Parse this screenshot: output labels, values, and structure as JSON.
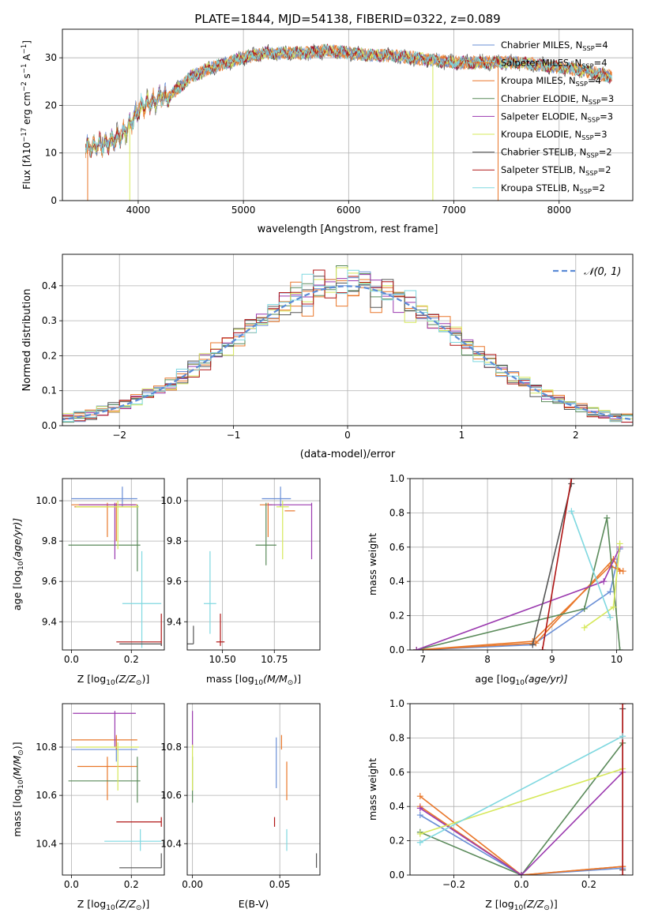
{
  "colors": {
    "Chabrier MILES": "#6a8fd6",
    "Salpeter MILES": "#e9772a",
    "Kroupa MILES": "#e9772a",
    "Chabrier ELODIE": "#5a8a5a",
    "Salpeter ELODIE": "#9b3aaf",
    "Kroupa ELODIE": "#d6e85a",
    "Chabrier STELIB": "#555555",
    "Salpeter STELIB": "#b01515",
    "Kroupa STELIB": "#7fd8e0",
    "gauss": "#5b8bd6",
    "grid": "#b0b0b0"
  },
  "chart_data": [
    {
      "id": "spectrum",
      "type": "line",
      "title": "PLATE=1844, MJD=54138, FIBERID=0322, z=0.089",
      "xlabel": "wavelength [Angstrom, rest frame]",
      "ylabel_parts": [
        "Flux [f",
        "λ",
        "10",
        "−17",
        " erg cm",
        "−2",
        " s",
        "−1",
        " A",
        "−1",
        "]"
      ],
      "xlim": [
        3280,
        8700
      ],
      "ylim": [
        0,
        36
      ],
      "xticks": [
        4000,
        5000,
        6000,
        7000,
        8000
      ],
      "yticks": [
        0,
        10,
        20,
        30
      ],
      "legend_position": "top-right",
      "legend": [
        {
          "main": "Chabrier MILES, N",
          "sub": "SSP",
          "tail": "=4"
        },
        {
          "main": "Salpeter MILES, N",
          "sub": "SSP",
          "tail": "=4"
        },
        {
          "main": "Kroupa MILES, N",
          "sub": "SSP",
          "tail": "=4"
        },
        {
          "main": "Chabrier ELODIE, N",
          "sub": "SSP",
          "tail": "=3"
        },
        {
          "main": "Salpeter ELODIE, N",
          "sub": "SSP",
          "tail": "=3"
        },
        {
          "main": "Kroupa ELODIE, N",
          "sub": "SSP",
          "tail": "=3"
        },
        {
          "main": "Chabrier STELIB, N",
          "sub": "SSP",
          "tail": "=2"
        },
        {
          "main": "Salpeter STELIB, N",
          "sub": "SSP",
          "tail": "=2"
        },
        {
          "main": "Kroupa STELIB, N",
          "sub": "SSP",
          "tail": "=2"
        }
      ],
      "continuum": {
        "x": [
          3500,
          3600,
          3700,
          3800,
          3900,
          4000,
          4100,
          4200,
          4300,
          4400,
          4500,
          4700,
          5000,
          5200,
          5400,
          5600,
          5800,
          6000,
          6200,
          6400,
          6600,
          6800,
          7000,
          7200,
          7400,
          7600,
          7800,
          8000,
          8200,
          8500
        ],
        "y": [
          11,
          11.5,
          12,
          13,
          15,
          19,
          20.5,
          21.5,
          22,
          24,
          26,
          28,
          30,
          31,
          31,
          31,
          31.5,
          31,
          30.5,
          30.5,
          30,
          29.5,
          29,
          29,
          29,
          29,
          28.5,
          28,
          27.5,
          26
        ]
      },
      "dips": [
        {
          "x": 3920,
          "y": 0,
          "series": "Kroupa ELODIE"
        },
        {
          "x": 6800,
          "y": 0,
          "series": "Kroupa ELODIE"
        },
        {
          "x": 7420,
          "y": 0,
          "series": "Kroupa MILES"
        },
        {
          "x": 3520,
          "y": 0,
          "series": "Kroupa MILES"
        }
      ]
    },
    {
      "id": "residuals",
      "type": "histogram",
      "xlabel": "(data-model)/error",
      "ylabel": "Normed distribution",
      "xlim": [
        -2.5,
        2.5
      ],
      "ylim": [
        0,
        0.49
      ],
      "xticks": [
        -2,
        -1,
        0,
        1,
        2
      ],
      "yticks": [
        0.0,
        0.1,
        0.2,
        0.3,
        0.4
      ],
      "legend_position": "top-right",
      "legend": [
        {
          "label_prefix": "𝒩",
          "label_rest": "(0, 1)"
        }
      ],
      "bin_width": 0.1,
      "reference_curve": {
        "mu": 0,
        "sigma": 1,
        "style": "dashed"
      }
    },
    {
      "id": "age-vs-Z",
      "type": "errorbar",
      "xlabel_parts": [
        "Z [log",
        "10",
        "(Z/Z",
        "⊙",
        ")]"
      ],
      "ylabel_parts": [
        "age  [log",
        "10",
        "(age/yr)]"
      ],
      "xlim": [
        -0.03,
        0.31
      ],
      "ylim": [
        9.26,
        10.11
      ],
      "xticks": [
        0.0,
        0.2
      ],
      "yticks": [
        9.4,
        9.6,
        9.8,
        10.0
      ],
      "points": [
        {
          "series": "Chabrier MILES",
          "x": 0.17,
          "y": 10.01,
          "xerr": [
            0.17,
            0.05
          ],
          "yerr": [
            0.04,
            0.06
          ]
        },
        {
          "series": "Salpeter MILES",
          "x": 0.12,
          "y": 9.98,
          "xerr": [
            0.12,
            0.1
          ],
          "yerr": [
            0.16,
            0.01
          ]
        },
        {
          "series": "Kroupa MILES",
          "x": 0.15,
          "y": 9.97,
          "xerr": [
            0.14,
            0.07
          ],
          "yerr": [
            0.17,
            0.02
          ]
        },
        {
          "series": "Chabrier ELODIE",
          "x": 0.22,
          "y": 9.78,
          "xerr": [
            0.23,
            0.01
          ],
          "yerr": [
            0.13,
            0.2
          ]
        },
        {
          "series": "Salpeter ELODIE",
          "x": 0.145,
          "y": 9.98,
          "xerr": [
            0.12,
            0.07
          ],
          "yerr": [
            0.27,
            0.01
          ]
        },
        {
          "series": "Kroupa ELODIE",
          "x": 0.155,
          "y": 9.97,
          "xerr": [
            0.14,
            0.07
          ],
          "yerr": [
            0.21,
            0.03
          ]
        },
        {
          "series": "Kroupa STELIB",
          "x": 0.235,
          "y": 9.49,
          "xerr": [
            0.065,
            0.065
          ],
          "yerr": [
            0.22,
            0.26
          ]
        },
        {
          "series": "Salpeter STELIB",
          "x": 0.3,
          "y": 9.3,
          "xerr": [
            0.15,
            0.0
          ],
          "yerr": [
            0.02,
            0.14
          ]
        },
        {
          "series": "Chabrier STELIB",
          "x": 0.3,
          "y": 9.29,
          "xerr": [
            0.14,
            0.0
          ],
          "yerr": [
            0.01,
            0.0
          ]
        }
      ]
    },
    {
      "id": "age-vs-mass",
      "type": "errorbar",
      "xlabel_parts": [
        "mass [log",
        "10",
        "(M/M",
        "⊙",
        ")]"
      ],
      "xlim": [
        10.33,
        10.97
      ],
      "ylim": [
        9.26,
        10.11
      ],
      "xticks": [
        10.5,
        10.75
      ],
      "yticks": [
        9.4,
        9.6,
        9.8,
        10.0
      ],
      "points": [
        {
          "series": "Chabrier MILES",
          "x": 10.78,
          "y": 10.01,
          "xerr": [
            0.09,
            0.05
          ],
          "yerr": [
            0.04,
            0.06
          ]
        },
        {
          "series": "Salpeter MILES",
          "x": 10.72,
          "y": 9.98,
          "xerr": [
            0.04,
            0.02
          ],
          "yerr": [
            0.16,
            0.01
          ]
        },
        {
          "series": "Kroupa MILES",
          "x": 10.83,
          "y": 9.95,
          "xerr": [
            0.03,
            0.02
          ],
          "yerr": [
            0.0,
            0.0
          ]
        },
        {
          "series": "Chabrier ELODIE",
          "x": 10.71,
          "y": 9.78,
          "xerr": [
            0.05,
            0.05
          ],
          "yerr": [
            0.1,
            0.21
          ]
        },
        {
          "series": "Salpeter ELODIE",
          "x": 10.93,
          "y": 9.98,
          "xerr": [
            0.21,
            0.0
          ],
          "yerr": [
            0.27,
            0.01
          ]
        },
        {
          "series": "Kroupa ELODIE",
          "x": 10.79,
          "y": 9.97,
          "xerr": [
            0.03,
            0.03
          ],
          "yerr": [
            0.26,
            0.03
          ]
        },
        {
          "series": "Kroupa STELIB",
          "x": 10.44,
          "y": 9.49,
          "xerr": [
            0.03,
            0.03
          ],
          "yerr": [
            0.15,
            0.26
          ]
        },
        {
          "series": "Salpeter STELIB",
          "x": 10.49,
          "y": 9.3,
          "xerr": [
            0.02,
            0.02
          ],
          "yerr": [
            0.02,
            0.14
          ]
        },
        {
          "series": "Chabrier STELIB",
          "x": 10.36,
          "y": 9.29,
          "xerr": [
            0.03,
            0.0
          ],
          "yerr": [
            0.0,
            0.09
          ]
        }
      ]
    },
    {
      "id": "massweight-vs-age",
      "type": "line",
      "xlabel_parts": [
        "age  [log",
        "10",
        "(age/yr)]"
      ],
      "ylabel": "mass weight",
      "xlim": [
        6.8,
        10.25
      ],
      "ylim": [
        0,
        1
      ],
      "xticks": [
        7,
        8,
        9,
        10
      ],
      "yticks": [
        0.0,
        0.2,
        0.4,
        0.6,
        0.8,
        1.0
      ],
      "series": [
        {
          "name": "Chabrier MILES",
          "x": [
            6.9,
            8.7,
            9.9,
            10.05
          ],
          "y": [
            0.0,
            0.03,
            0.34,
            0.59
          ]
        },
        {
          "name": "Salpeter MILES",
          "x": [
            6.9,
            8.7,
            9.9,
            10.1
          ],
          "y": [
            0.0,
            0.05,
            0.49,
            0.46
          ]
        },
        {
          "name": "Kroupa MILES",
          "x": [
            6.9,
            8.75,
            9.95,
            10.05
          ],
          "y": [
            0.0,
            0.04,
            0.53,
            0.46
          ]
        },
        {
          "name": "Chabrier ELODIE",
          "x": [
            6.9,
            9.5,
            9.85,
            10.05
          ],
          "y": [
            0.0,
            0.24,
            0.77,
            0.0
          ]
        },
        {
          "name": "Salpeter ELODIE",
          "x": [
            6.9,
            9.8,
            10.05
          ],
          "y": [
            0.0,
            0.4,
            0.6
          ]
        },
        {
          "name": "Kroupa ELODIE",
          "x": [
            9.5,
            9.95,
            10.05
          ],
          "y": [
            0.13,
            0.25,
            0.62
          ]
        },
        {
          "name": "Chabrier STELIB",
          "x": [
            8.7,
            9.3
          ],
          "y": [
            0.03,
            0.97
          ]
        },
        {
          "name": "Salpeter STELIB",
          "x": [
            8.85,
            9.3
          ],
          "y": [
            0.0,
            1.0
          ]
        },
        {
          "name": "Kroupa STELIB",
          "x": [
            9.3,
            9.9
          ],
          "y": [
            0.81,
            0.19
          ]
        }
      ]
    },
    {
      "id": "mass-vs-Z",
      "type": "errorbar",
      "xlabel_parts": [
        "Z [log",
        "10",
        "(Z/Z",
        "⊙",
        ")]"
      ],
      "ylabel_parts": [
        "mass [log",
        "10",
        "(M/M",
        "⊙",
        ")]"
      ],
      "xlim": [
        -0.03,
        0.31
      ],
      "ylim": [
        10.27,
        10.98
      ],
      "xticks": [
        0.0,
        0.2
      ],
      "yticks": [
        10.4,
        10.6,
        10.8
      ],
      "points": [
        {
          "series": "Chabrier MILES",
          "x": 0.15,
          "y": 10.79,
          "xerr": [
            0.15,
            0.07
          ],
          "yerr": [
            0.05,
            0.05
          ]
        },
        {
          "series": "Salpeter MILES",
          "x": 0.12,
          "y": 10.72,
          "xerr": [
            0.1,
            0.1
          ],
          "yerr": [
            0.14,
            0.04
          ]
        },
        {
          "series": "Kroupa MILES",
          "x": 0.15,
          "y": 10.83,
          "xerr": [
            0.15,
            0.07
          ],
          "yerr": [
            0.04,
            0.02
          ]
        },
        {
          "series": "Chabrier ELODIE",
          "x": 0.22,
          "y": 10.66,
          "xerr": [
            0.23,
            0.01
          ],
          "yerr": [
            0.09,
            0.1
          ]
        },
        {
          "series": "Salpeter ELODIE",
          "x": 0.145,
          "y": 10.94,
          "xerr": [
            0.14,
            0.07
          ],
          "yerr": [
            0.14,
            0.01
          ]
        },
        {
          "series": "Kroupa ELODIE",
          "x": 0.155,
          "y": 10.8,
          "xerr": [
            0.14,
            0.07
          ],
          "yerr": [
            0.18,
            0.02
          ]
        },
        {
          "series": "Kroupa STELIB",
          "x": 0.23,
          "y": 10.41,
          "xerr": [
            0.12,
            0.07
          ],
          "yerr": [
            0.04,
            0.05
          ]
        },
        {
          "series": "Salpeter STELIB",
          "x": 0.3,
          "y": 10.49,
          "xerr": [
            0.15,
            0.0
          ],
          "yerr": [
            0.02,
            0.02
          ]
        },
        {
          "series": "Chabrier STELIB",
          "x": 0.3,
          "y": 10.3,
          "xerr": [
            0.14,
            0.0
          ],
          "yerr": [
            0.0,
            0.06
          ]
        }
      ]
    },
    {
      "id": "mass-vs-EBV",
      "type": "errorbar",
      "xlabel": "E(B-V)",
      "xlim": [
        -0.003,
        0.073
      ],
      "ylim": [
        10.27,
        10.98
      ],
      "xticks": [
        0.0,
        0.05
      ],
      "yticks": [
        10.4,
        10.6,
        10.8
      ],
      "points": [
        {
          "series": "Chabrier MILES",
          "x": 0.048,
          "y": 10.79,
          "xerr": [
            0,
            0
          ],
          "yerr": [
            0.16,
            0.05
          ]
        },
        {
          "series": "Salpeter MILES",
          "x": 0.054,
          "y": 10.72,
          "xerr": [
            0,
            0
          ],
          "yerr": [
            0.14,
            0.02
          ]
        },
        {
          "series": "Kroupa MILES",
          "x": 0.051,
          "y": 10.83,
          "xerr": [
            0,
            0
          ],
          "yerr": [
            0.04,
            0.02
          ]
        },
        {
          "series": "Chabrier ELODIE",
          "x": 0.0,
          "y": 10.66,
          "xerr": [
            0,
            0
          ],
          "yerr": [
            0.09,
            0.1
          ]
        },
        {
          "series": "Salpeter ELODIE",
          "x": 0.0,
          "y": 10.94,
          "xerr": [
            0,
            0
          ],
          "yerr": [
            0.14,
            0.01
          ]
        },
        {
          "series": "Kroupa ELODIE",
          "x": 0.0,
          "y": 10.8,
          "xerr": [
            0,
            0
          ],
          "yerr": [
            0.18,
            0.01
          ]
        },
        {
          "series": "Kroupa STELIB",
          "x": 0.054,
          "y": 10.41,
          "xerr": [
            0,
            0
          ],
          "yerr": [
            0.04,
            0.05
          ]
        },
        {
          "series": "Salpeter STELIB",
          "x": 0.047,
          "y": 10.49,
          "xerr": [
            0,
            0
          ],
          "yerr": [
            0.02,
            0.02
          ]
        },
        {
          "series": "Chabrier STELIB",
          "x": 0.071,
          "y": 10.3,
          "xerr": [
            0,
            0
          ],
          "yerr": [
            0.0,
            0.06
          ]
        }
      ]
    },
    {
      "id": "massweight-vs-Z",
      "type": "line",
      "xlabel_parts": [
        "Z [log",
        "10",
        "(Z/Z",
        "⊙",
        ")]"
      ],
      "ylabel": "mass weight",
      "xlim": [
        -0.33,
        0.33
      ],
      "ylim": [
        0,
        1
      ],
      "xticks": [
        -0.2,
        0.0,
        0.2
      ],
      "yticks": [
        0.0,
        0.2,
        0.4,
        0.6,
        0.8,
        1.0
      ],
      "series": [
        {
          "name": "Chabrier MILES",
          "x": [
            -0.3,
            0.0,
            0.3
          ],
          "y": [
            0.35,
            0.0,
            0.04
          ]
        },
        {
          "name": "Salpeter MILES",
          "x": [
            -0.3,
            0.0,
            0.3
          ],
          "y": [
            0.46,
            0.0,
            0.05
          ]
        },
        {
          "name": "Kroupa MILES",
          "x": [
            -0.3,
            0.0,
            0.3
          ],
          "y": [
            0.4,
            0.0,
            0.05
          ]
        },
        {
          "name": "Chabrier ELODIE",
          "x": [
            -0.3,
            0.0,
            0.3
          ],
          "y": [
            0.25,
            0.0,
            0.77
          ]
        },
        {
          "name": "Salpeter ELODIE",
          "x": [
            -0.3,
            0.0,
            0.3
          ],
          "y": [
            0.39,
            0.0,
            0.6
          ]
        },
        {
          "name": "Kroupa ELODIE",
          "x": [
            -0.3,
            0.3
          ],
          "y": [
            0.24,
            0.62
          ]
        },
        {
          "name": "Chabrier STELIB",
          "x": [
            0.3,
            0.3
          ],
          "y": [
            0.03,
            0.97
          ]
        },
        {
          "name": "Salpeter STELIB",
          "x": [
            0.3,
            0.3
          ],
          "y": [
            0.0,
            1.0
          ]
        },
        {
          "name": "Kroupa STELIB",
          "x": [
            -0.3,
            0.3
          ],
          "y": [
            0.19,
            0.81
          ]
        }
      ]
    }
  ]
}
